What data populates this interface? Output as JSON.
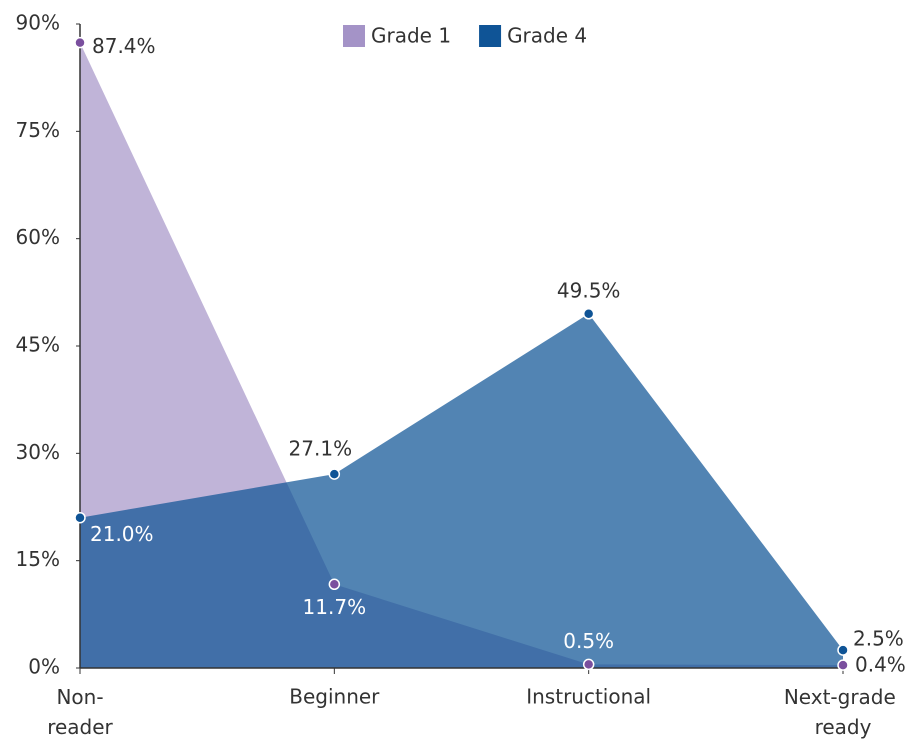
{
  "chart_data": {
    "type": "area",
    "categories": [
      "Non-reader",
      "Beginner",
      "Instructional",
      "Next-grade ready"
    ],
    "series": [
      {
        "name": "Grade 1",
        "color": "#a493c7",
        "marker_color": "#7a4f9e",
        "opacity": 0.69,
        "values": [
          87.4,
          11.7,
          0.5,
          0.4
        ],
        "value_labels": [
          "87.4%",
          "11.7%",
          "0.5%",
          "0.4%"
        ]
      },
      {
        "name": "Grade 4",
        "color": "#0f5496",
        "marker_color": "#0f5496",
        "opacity": 0.72,
        "values": [
          21.0,
          27.1,
          49.5,
          2.5
        ],
        "value_labels": [
          "21.0%",
          "27.1%",
          "49.5%",
          "2.5%"
        ]
      }
    ],
    "ylim": [
      0,
      90
    ],
    "yticks": [
      {
        "value": 0,
        "label": "0%"
      },
      {
        "value": 15,
        "label": "15%"
      },
      {
        "value": 30,
        "label": "30%"
      },
      {
        "value": 45,
        "label": "45%"
      },
      {
        "value": 60,
        "label": "60%"
      },
      {
        "value": 75,
        "label": "75%"
      },
      {
        "value": 90,
        "label": "90%"
      }
    ],
    "legend": "top"
  }
}
